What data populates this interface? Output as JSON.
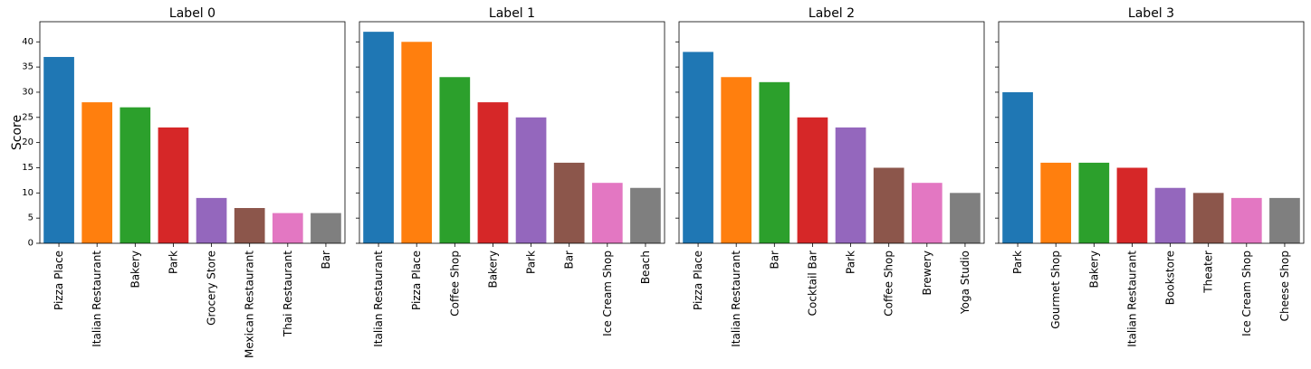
{
  "chart_data": {
    "type": "bar",
    "ylabel": "Score",
    "ylim": [
      0,
      44
    ],
    "yticks": [
      0,
      5,
      10,
      15,
      20,
      25,
      30,
      35,
      40
    ],
    "shared_y": true,
    "grid": false,
    "colors": [
      "#1f77b4",
      "#ff7f0e",
      "#2ca02c",
      "#d62728",
      "#9467bd",
      "#8c564b",
      "#e377c2",
      "#7f7f7f"
    ],
    "panels": [
      {
        "title": "Label 0",
        "categories": [
          "Pizza Place",
          "Italian Restaurant",
          "Bakery",
          "Park",
          "Grocery Store",
          "Mexican Restaurant",
          "Thai Restaurant",
          "Bar"
        ],
        "values": [
          37,
          28,
          27,
          23,
          9,
          7,
          6,
          6
        ]
      },
      {
        "title": "Label 1",
        "categories": [
          "Italian Restaurant",
          "Pizza Place",
          "Coffee Shop",
          "Bakery",
          "Park",
          "Bar",
          "Ice Cream Shop",
          "Beach"
        ],
        "values": [
          42,
          40,
          33,
          28,
          25,
          16,
          12,
          11
        ]
      },
      {
        "title": "Label 2",
        "categories": [
          "Pizza Place",
          "Italian Restaurant",
          "Bar",
          "Cocktail Bar",
          "Park",
          "Coffee Shop",
          "Brewery",
          "Yoga Studio"
        ],
        "values": [
          38,
          33,
          32,
          25,
          23,
          15,
          12,
          10
        ]
      },
      {
        "title": "Label 3",
        "categories": [
          "Park",
          "Gourmet Shop",
          "Bakery",
          "Italian Restaurant",
          "Bookstore",
          "Theater",
          "Ice Cream Shop",
          "Cheese Shop"
        ],
        "values": [
          30,
          16,
          16,
          15,
          11,
          10,
          9,
          9
        ]
      }
    ]
  }
}
